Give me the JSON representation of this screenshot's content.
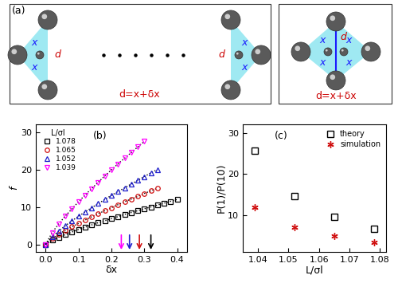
{
  "diagram": {
    "label": "(a)",
    "panels": [
      {
        "edge_label": "x",
        "center_label": "d",
        "caption": "d=x+δx"
      },
      {
        "edge_label": "x",
        "center_label": "d",
        "caption": "d=x+δx"
      }
    ]
  },
  "chart_data": [
    {
      "type": "scatter",
      "title": "(b)",
      "x_label": "δx",
      "y_label": "f",
      "legend_title": "L/σl",
      "legend": "upper left",
      "xlim": [
        -0.03,
        0.43
      ],
      "xticks": [
        {
          "value": 0,
          "label": "0.0"
        },
        {
          "value": 0.1,
          "label": "0.1"
        },
        {
          "value": 0.2,
          "label": "0.2"
        },
        {
          "value": 0.3,
          "label": "0.3"
        },
        {
          "value": 0.4,
          "label": "0.4"
        }
      ],
      "ylim": [
        -2,
        32
      ],
      "yticks": [
        0,
        10,
        20,
        30
      ],
      "series": [
        {
          "name": "1.078",
          "color": "#000000",
          "marker": "square",
          "line_style": "dotted",
          "arrow_x": 0.32,
          "x": [
            0,
            0.02,
            0.04,
            0.06,
            0.08,
            0.1,
            0.12,
            0.14,
            0.16,
            0.18,
            0.2,
            0.22,
            0.24,
            0.26,
            0.28,
            0.3,
            0.32,
            0.34,
            0.36,
            0.38,
            0.4
          ],
          "values": [
            0,
            1.1,
            1.9,
            2.6,
            3.3,
            4.0,
            4.6,
            5.2,
            5.8,
            6.3,
            6.9,
            7.4,
            8.0,
            8.5,
            9.0,
            9.5,
            10.0,
            10.5,
            11.0,
            11.5,
            12.0
          ]
        },
        {
          "name": "1.065",
          "color": "#d01010",
          "marker": "circle",
          "line_style": "dotted",
          "arrow_x": 0.285,
          "x": [
            0,
            0.02,
            0.04,
            0.06,
            0.08,
            0.1,
            0.12,
            0.14,
            0.16,
            0.18,
            0.2,
            0.22,
            0.24,
            0.26,
            0.28,
            0.3,
            0.32,
            0.34
          ],
          "values": [
            0,
            1.6,
            2.7,
            3.8,
            4.7,
            5.6,
            6.5,
            7.4,
            8.2,
            9.0,
            9.8,
            10.6,
            11.4,
            12.1,
            12.8,
            13.6,
            14.3,
            15.0
          ]
        },
        {
          "name": "1.052",
          "color": "#1f1fcc",
          "marker": "triangle_up",
          "line_style": "dotted",
          "arrow_x": 0.255,
          "x": [
            0,
            0.02,
            0.04,
            0.06,
            0.08,
            0.1,
            0.12,
            0.14,
            0.16,
            0.18,
            0.2,
            0.22,
            0.24,
            0.26,
            0.28,
            0.3,
            0.32,
            0.34
          ],
          "values": [
            0,
            2.1,
            3.6,
            5.0,
            6.3,
            7.5,
            8.7,
            9.8,
            10.9,
            12.0,
            13.1,
            14.1,
            15.1,
            16.1,
            17.1,
            18.1,
            19.1,
            20.0
          ]
        },
        {
          "name": "1.039",
          "color": "#ff00ff",
          "marker": "triangle_down",
          "line_style": "dotted",
          "arrow_x": 0.23,
          "x": [
            0,
            0.02,
            0.04,
            0.06,
            0.08,
            0.1,
            0.12,
            0.14,
            0.16,
            0.18,
            0.2,
            0.22,
            0.24,
            0.26,
            0.28,
            0.3
          ],
          "values": [
            0,
            3.2,
            5.5,
            7.6,
            9.5,
            11.4,
            13.2,
            14.9,
            16.6,
            18.3,
            19.9,
            21.5,
            23.0,
            24.5,
            26.0,
            27.5
          ]
        }
      ]
    },
    {
      "type": "scatter",
      "title": "(c)",
      "x_label": "L/σl",
      "y_label": "P(1)/P(10)",
      "legend": "upper right",
      "xlim": [
        1.035,
        1.082
      ],
      "xticks": [
        1.04,
        1.05,
        1.06,
        1.07,
        1.08
      ],
      "ylim": [
        1,
        32
      ],
      "yticks": [
        10,
        20,
        30
      ],
      "series": [
        {
          "name": "theory",
          "color": "#000000",
          "marker": "square",
          "x": [
            1.039,
            1.052,
            1.065,
            1.078
          ],
          "values": [
            25.7,
            14.6,
            9.5,
            6.7
          ]
        },
        {
          "name": "simulation",
          "color": "#d01010",
          "marker": "asterisk",
          "x": [
            1.039,
            1.052,
            1.065,
            1.078
          ],
          "values": [
            11.9,
            7.1,
            4.9,
            3.3
          ]
        }
      ]
    }
  ]
}
